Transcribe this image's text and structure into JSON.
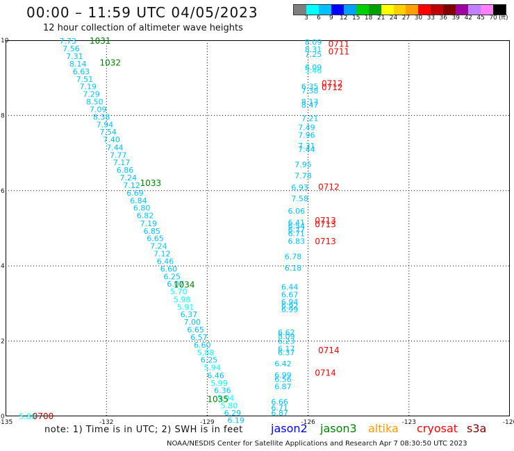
{
  "header": {
    "title": "00:00 – 11:59 UTC 04/05/2023",
    "subtitle": "12 hour collection of altimeter wave heights"
  },
  "legend": {
    "colors": [
      "#7f7f7f",
      "#00ffff",
      "#00c0ff",
      "#0000ff",
      "#00a0ff",
      "#00d000",
      "#00a000",
      "#ffff00",
      "#ffd000",
      "#ffa000",
      "#ff0000",
      "#c00000",
      "#800000",
      "#a000a0",
      "#c080ff",
      "#ff80ff",
      "#000000"
    ],
    "labels": [
      "3",
      "6",
      "9",
      "12",
      "15",
      "18",
      "21",
      "24",
      "27",
      "30",
      "33",
      "36",
      "39",
      "42",
      "45",
      "70"
    ],
    "unit": "(ft)"
  },
  "chart_data": {
    "type": "scatter",
    "xlim": [
      -135,
      -120
    ],
    "ylim": [
      0,
      10
    ],
    "xticks": [
      "-135",
      "-132",
      "-129",
      "-126",
      "-123",
      "-120"
    ],
    "yticks": [
      "0",
      "2",
      "4",
      "6",
      "8",
      "10"
    ],
    "grid": true,
    "time_labels": [
      {
        "text": "1031",
        "lon": -132.5,
        "lat": 9.98,
        "color": "#008000"
      },
      {
        "text": "1032",
        "lon": -132.2,
        "lat": 9.4,
        "color": "#008000"
      },
      {
        "text": "1033",
        "lon": -131.0,
        "lat": 6.2,
        "color": "#008000"
      },
      {
        "text": "1034",
        "lon": -130.0,
        "lat": 3.5,
        "color": "#008000"
      },
      {
        "text": "1035",
        "lon": -129.0,
        "lat": 0.45,
        "color": "#008000"
      },
      {
        "text": "0700",
        "lon": -134.2,
        "lat": 0.0,
        "color": "#c00000"
      },
      {
        "text": "0711",
        "lon": -125.4,
        "lat": 9.9,
        "color": "#ff0000"
      },
      {
        "text": "0711",
        "lon": -125.4,
        "lat": 9.7,
        "color": "#ff0000"
      },
      {
        "text": "0712",
        "lon": -125.6,
        "lat": 8.85,
        "color": "#ff0000"
      },
      {
        "text": "0712",
        "lon": -125.6,
        "lat": 8.75,
        "color": "#ff0000"
      },
      {
        "text": "0712",
        "lon": -125.7,
        "lat": 6.1,
        "color": "#ff0000"
      },
      {
        "text": "0713",
        "lon": -125.8,
        "lat": 5.2,
        "color": "#ff0000"
      },
      {
        "text": "0713",
        "lon": -125.8,
        "lat": 5.1,
        "color": "#ff0000"
      },
      {
        "text": "0713",
        "lon": -125.8,
        "lat": 4.65,
        "color": "#ff0000"
      },
      {
        "text": "0714",
        "lon": -125.7,
        "lat": 1.75,
        "color": "#ff0000"
      },
      {
        "text": "0714",
        "lon": -125.8,
        "lat": 1.15,
        "color": "#ff0000"
      }
    ],
    "series": [
      {
        "points": [
          {
            "lon": -134.6,
            "lat": 0.0,
            "v": "5.88"
          },
          {
            "lon": -133.4,
            "lat": 9.98,
            "v": "7.73"
          },
          {
            "lon": -133.3,
            "lat": 9.78,
            "v": "7.56"
          },
          {
            "lon": -133.2,
            "lat": 9.58,
            "v": "7.31"
          },
          {
            "lon": -133.1,
            "lat": 9.37,
            "v": "8.14"
          },
          {
            "lon": -133.0,
            "lat": 9.17,
            "v": "6.63"
          },
          {
            "lon": -132.9,
            "lat": 8.97,
            "v": "7.51"
          },
          {
            "lon": -132.8,
            "lat": 8.77,
            "v": "7.19"
          },
          {
            "lon": -132.7,
            "lat": 8.57,
            "v": "7.29"
          },
          {
            "lon": -132.6,
            "lat": 8.37,
            "v": "8.50"
          },
          {
            "lon": -132.5,
            "lat": 8.16,
            "v": "7.09"
          },
          {
            "lon": -132.4,
            "lat": 7.96,
            "v": "8.38"
          },
          {
            "lon": -132.3,
            "lat": 7.76,
            "v": "7.94"
          },
          {
            "lon": -132.2,
            "lat": 7.56,
            "v": "7.54"
          },
          {
            "lon": -132.1,
            "lat": 7.36,
            "v": "7.40"
          },
          {
            "lon": -132.0,
            "lat": 7.15,
            "v": "7.44"
          },
          {
            "lon": -131.9,
            "lat": 6.95,
            "v": "7.77"
          },
          {
            "lon": -131.8,
            "lat": 6.75,
            "v": "7.17"
          },
          {
            "lon": -131.7,
            "lat": 6.55,
            "v": "6.86"
          },
          {
            "lon": -131.6,
            "lat": 6.35,
            "v": "7.24"
          },
          {
            "lon": -131.5,
            "lat": 6.14,
            "v": "7.12"
          },
          {
            "lon": -131.4,
            "lat": 5.94,
            "v": "6.69"
          },
          {
            "lon": -131.3,
            "lat": 5.74,
            "v": "6.84"
          },
          {
            "lon": -131.2,
            "lat": 5.54,
            "v": "6.80"
          },
          {
            "lon": -131.1,
            "lat": 5.34,
            "v": "6.82"
          },
          {
            "lon": -131.0,
            "lat": 5.13,
            "v": "7.19"
          },
          {
            "lon": -130.9,
            "lat": 4.93,
            "v": "6.85"
          },
          {
            "lon": -130.8,
            "lat": 4.73,
            "v": "6.65"
          },
          {
            "lon": -130.7,
            "lat": 4.53,
            "v": "7.24"
          },
          {
            "lon": -130.6,
            "lat": 4.33,
            "v": "7.12"
          },
          {
            "lon": -130.5,
            "lat": 4.12,
            "v": "6.46"
          },
          {
            "lon": -130.4,
            "lat": 3.92,
            "v": "6.60"
          },
          {
            "lon": -130.3,
            "lat": 3.72,
            "v": "6.25"
          },
          {
            "lon": -130.2,
            "lat": 3.52,
            "v": "6.07"
          },
          {
            "lon": -130.1,
            "lat": 3.32,
            "v": "5.70"
          },
          {
            "lon": -130.0,
            "lat": 3.11,
            "v": "5.98"
          },
          {
            "lon": -129.9,
            "lat": 2.91,
            "v": "5.91"
          },
          {
            "lon": -129.8,
            "lat": 2.71,
            "v": "6.37"
          },
          {
            "lon": -129.7,
            "lat": 2.51,
            "v": "7.00"
          },
          {
            "lon": -129.6,
            "lat": 2.31,
            "v": "6.65"
          },
          {
            "lon": -129.5,
            "lat": 2.1,
            "v": "6.57"
          },
          {
            "lon": -129.4,
            "lat": 1.9,
            "v": "6.60"
          },
          {
            "lon": -129.3,
            "lat": 1.7,
            "v": "5.88"
          },
          {
            "lon": -129.2,
            "lat": 1.5,
            "v": "6.25"
          },
          {
            "lon": -129.1,
            "lat": 1.3,
            "v": "5.94"
          },
          {
            "lon": -129.0,
            "lat": 1.09,
            "v": "6.46"
          },
          {
            "lon": -128.9,
            "lat": 0.89,
            "v": "5.99"
          },
          {
            "lon": -128.8,
            "lat": 0.69,
            "v": "6.36"
          },
          {
            "lon": -128.7,
            "lat": 0.49,
            "v": "5.94"
          },
          {
            "lon": -128.6,
            "lat": 0.29,
            "v": "5.80"
          },
          {
            "lon": -128.5,
            "lat": 0.09,
            "v": "6.29"
          },
          {
            "lon": -128.4,
            "lat": -0.1,
            "v": "6.19"
          }
        ]
      },
      {
        "points": [
          {
            "lon": -126.1,
            "lat": 9.95,
            "v": "8.09"
          },
          {
            "lon": -126.1,
            "lat": 9.76,
            "v": "8.31"
          },
          {
            "lon": -126.1,
            "lat": 9.63,
            "v": "7.25"
          },
          {
            "lon": -126.1,
            "lat": 9.28,
            "v": "6.09"
          },
          {
            "lon": -126.1,
            "lat": 9.2,
            "v": "5.46"
          },
          {
            "lon": -126.2,
            "lat": 8.77,
            "v": "6.35"
          },
          {
            "lon": -126.2,
            "lat": 8.66,
            "v": "7.38"
          },
          {
            "lon": -126.2,
            "lat": 8.37,
            "v": "8.13"
          },
          {
            "lon": -126.2,
            "lat": 8.28,
            "v": "8.47"
          },
          {
            "lon": -126.2,
            "lat": 7.92,
            "v": "7.21"
          },
          {
            "lon": -126.3,
            "lat": 7.68,
            "v": "7.49"
          },
          {
            "lon": -126.3,
            "lat": 7.48,
            "v": "7.96"
          },
          {
            "lon": -126.3,
            "lat": 7.2,
            "v": "7.31"
          },
          {
            "lon": -126.3,
            "lat": 7.1,
            "v": "7.44"
          },
          {
            "lon": -126.4,
            "lat": 6.7,
            "v": "7.95"
          },
          {
            "lon": -126.4,
            "lat": 6.4,
            "v": "7.78"
          },
          {
            "lon": -126.5,
            "lat": 6.09,
            "v": "6.93"
          },
          {
            "lon": -126.5,
            "lat": 5.79,
            "v": "7.58"
          },
          {
            "lon": -126.6,
            "lat": 5.46,
            "v": "6.06"
          },
          {
            "lon": -126.6,
            "lat": 5.16,
            "v": "6.41"
          },
          {
            "lon": -126.6,
            "lat": 5.06,
            "v": "6.54"
          },
          {
            "lon": -126.6,
            "lat": 4.96,
            "v": "6.77"
          },
          {
            "lon": -126.6,
            "lat": 4.86,
            "v": "6.71"
          },
          {
            "lon": -126.6,
            "lat": 4.66,
            "v": "6.83"
          },
          {
            "lon": -126.7,
            "lat": 4.25,
            "v": "6.78"
          },
          {
            "lon": -126.7,
            "lat": 3.95,
            "v": "6.18"
          },
          {
            "lon": -126.8,
            "lat": 3.44,
            "v": "6.44"
          },
          {
            "lon": -126.8,
            "lat": 3.24,
            "v": "6.67"
          },
          {
            "lon": -126.8,
            "lat": 3.04,
            "v": "6.94"
          },
          {
            "lon": -126.8,
            "lat": 2.94,
            "v": "6.92"
          },
          {
            "lon": -126.8,
            "lat": 2.84,
            "v": "6.99"
          },
          {
            "lon": -126.9,
            "lat": 2.23,
            "v": "6.62"
          },
          {
            "lon": -126.9,
            "lat": 2.13,
            "v": "8.09"
          },
          {
            "lon": -126.9,
            "lat": 2.0,
            "v": "6.23"
          },
          {
            "lon": -126.9,
            "lat": 1.8,
            "v": "6.17"
          },
          {
            "lon": -126.9,
            "lat": 1.7,
            "v": "6.37"
          },
          {
            "lon": -127.0,
            "lat": 1.4,
            "v": "6.42"
          },
          {
            "lon": -127.0,
            "lat": 1.1,
            "v": "6.99"
          },
          {
            "lon": -127.0,
            "lat": 0.99,
            "v": "6.56"
          },
          {
            "lon": -127.0,
            "lat": 0.79,
            "v": "6.87"
          },
          {
            "lon": -127.1,
            "lat": 0.39,
            "v": "6.66"
          },
          {
            "lon": -127.1,
            "lat": 0.23,
            "v": "6.71"
          },
          {
            "lon": -127.1,
            "lat": 0.09,
            "v": "6.87"
          }
        ]
      }
    ]
  },
  "note": "note: 1) Time is in UTC; 2) SWH is in feet",
  "satellites": [
    {
      "label": "jason2",
      "color": "#0000ff"
    },
    {
      "label": "jason3",
      "color": "#008000"
    },
    {
      "label": "altika",
      "color": "#ff9900"
    },
    {
      "label": "cryosat",
      "color": "#ff0000"
    },
    {
      "label": "s3a",
      "color": "#800000"
    }
  ],
  "footer": "NOAA/NESDIS Center for Satellite Applications and Research   Apr  7 08:30:50 UTC 2023"
}
